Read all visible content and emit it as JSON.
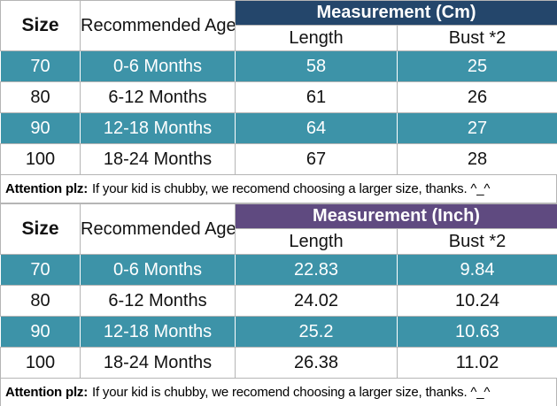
{
  "colors": {
    "cm_header_bg": "#24466B",
    "inch_header_bg": "#5F4A80",
    "highlight_row_bg": "#3D93A8",
    "grid_border": "#b5b5b5",
    "header_text": "#ffffff",
    "body_text": "#121212"
  },
  "tables": [
    {
      "size_header": "Size",
      "age_header": "Recommended Age",
      "measurement_header": "Measurement (Cm)",
      "columns": {
        "length": "Length",
        "bust": "Bust *2"
      },
      "rows": [
        {
          "size": "70",
          "age": "0-6 Months",
          "length": "58",
          "bust": "25",
          "highlight": true
        },
        {
          "size": "80",
          "age": "6-12 Months",
          "length": "61",
          "bust": "26",
          "highlight": false
        },
        {
          "size": "90",
          "age": "12-18 Months",
          "length": "64",
          "bust": "27",
          "highlight": true
        },
        {
          "size": "100",
          "age": "18-24 Months",
          "length": "67",
          "bust": "28",
          "highlight": false
        }
      ],
      "note_bold": "Attention plz:",
      "note_text": "If your kid is chubby, we recomend choosing a larger size, thanks. ^_^"
    },
    {
      "size_header": "Size",
      "age_header": "Recommended Age",
      "measurement_header": "Measurement (Inch)",
      "columns": {
        "length": "Length",
        "bust": "Bust *2"
      },
      "rows": [
        {
          "size": "70",
          "age": "0-6 Months",
          "length": "22.83",
          "bust": "9.84",
          "highlight": true
        },
        {
          "size": "80",
          "age": "6-12 Months",
          "length": "24.02",
          "bust": "10.24",
          "highlight": false
        },
        {
          "size": "90",
          "age": "12-18 Months",
          "length": "25.2",
          "bust": "10.63",
          "highlight": true
        },
        {
          "size": "100",
          "age": "18-24 Months",
          "length": "26.38",
          "bust": "11.02",
          "highlight": false
        }
      ],
      "note_bold": "Attention plz:",
      "note_text": "If your kid is chubby, we recomend choosing a larger size, thanks. ^_^"
    }
  ]
}
